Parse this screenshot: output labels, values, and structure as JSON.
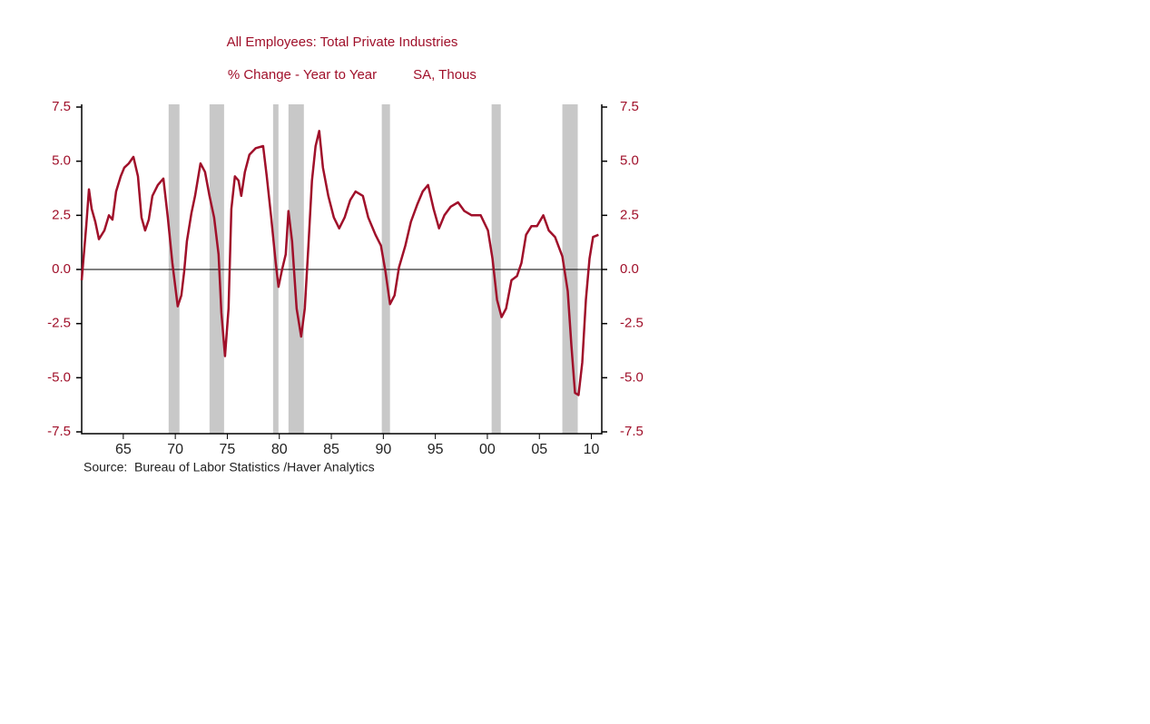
{
  "chart_data": {
    "type": "line",
    "title": "All Employees: Total Private Industries",
    "subtitle": "% Change - Year to Year",
    "units": "SA, Thous",
    "source": "Source:  Bureau of Labor Statistics /Haver Analytics",
    "color": "#a0102a",
    "shade_color": "#c8c8c8",
    "x": [
      1961.0,
      1961.44,
      1961.7,
      1961.96,
      1962.31,
      1962.66,
      1963.18,
      1963.62,
      1963.96,
      1964.31,
      1964.75,
      1965.09,
      1965.53,
      1965.97,
      1966.41,
      1966.75,
      1967.1,
      1967.45,
      1967.8,
      1968.32,
      1968.85,
      1969.28,
      1969.72,
      1970.23,
      1970.58,
      1970.85,
      1971.11,
      1971.55,
      1971.9,
      1972.42,
      1972.86,
      1973.29,
      1973.73,
      1974.16,
      1974.43,
      1974.78,
      1975.12,
      1975.39,
      1975.73,
      1976.08,
      1976.34,
      1976.69,
      1977.13,
      1977.74,
      1978.44,
      1978.79,
      1979.22,
      1979.66,
      1979.92,
      1980.27,
      1980.62,
      1980.88,
      1981.23,
      1981.66,
      1982.1,
      1982.45,
      1982.8,
      1983.14,
      1983.49,
      1983.84,
      1984.19,
      1984.71,
      1985.24,
      1985.76,
      1986.28,
      1986.81,
      1987.33,
      1988.03,
      1988.55,
      1989.25,
      1989.77,
      1990.21,
      1990.64,
      1991.08,
      1991.51,
      1992.12,
      1992.65,
      1993.26,
      1993.78,
      1994.3,
      1994.83,
      1995.35,
      1995.87,
      1996.48,
      1997.18,
      1997.79,
      1998.49,
      1999.36,
      2000.06,
      2000.49,
      2000.93,
      2001.37,
      2001.8,
      2002.32,
      2002.85,
      2003.28,
      2003.72,
      2004.24,
      2004.77,
      2005.38,
      2005.9,
      2006.51,
      2007.21,
      2007.73,
      2008.08,
      2008.43,
      2008.77,
      2009.12,
      2009.47,
      2009.82,
      2010.16,
      2010.69
    ],
    "values": [
      -0.5,
      2.0,
      3.7,
      2.8,
      2.2,
      1.4,
      1.8,
      2.5,
      2.3,
      3.6,
      4.3,
      4.7,
      4.9,
      5.2,
      4.3,
      2.4,
      1.8,
      2.3,
      3.4,
      3.9,
      4.2,
      2.4,
      0.3,
      -1.7,
      -1.2,
      -0.1,
      1.3,
      2.6,
      3.4,
      4.9,
      4.5,
      3.4,
      2.4,
      0.7,
      -2.0,
      -4.0,
      -1.8,
      2.8,
      4.3,
      4.1,
      3.4,
      4.5,
      5.3,
      5.6,
      5.7,
      4.3,
      2.4,
      0.3,
      -0.8,
      0.0,
      0.7,
      2.7,
      1.3,
      -1.8,
      -3.1,
      -1.8,
      1.1,
      4.1,
      5.7,
      6.4,
      4.7,
      3.4,
      2.4,
      1.9,
      2.4,
      3.2,
      3.6,
      3.4,
      2.4,
      1.6,
      1.1,
      -0.1,
      -1.6,
      -1.2,
      0.1,
      1.1,
      2.2,
      3.0,
      3.6,
      3.9,
      2.8,
      1.9,
      2.5,
      2.9,
      3.1,
      2.7,
      2.5,
      2.5,
      1.8,
      0.5,
      -1.4,
      -2.2,
      -1.8,
      -0.5,
      -0.3,
      0.3,
      1.6,
      2.0,
      2.0,
      2.5,
      1.8,
      1.5,
      0.6,
      -1.0,
      -3.5,
      -5.7,
      -5.8,
      -4.3,
      -1.4,
      0.5,
      1.5,
      1.6
    ],
    "shaded_ranges": [
      [
        1969.36,
        1970.4
      ],
      [
        1973.29,
        1974.69
      ],
      [
        1979.4,
        1979.92
      ],
      [
        1980.88,
        1982.36
      ],
      [
        1989.85,
        1990.64
      ],
      [
        2000.41,
        2001.29
      ],
      [
        2007.21,
        2008.69
      ]
    ],
    "xlim": [
      1961,
      2011
    ],
    "xticks": [
      {
        "value": 1965,
        "label": "65"
      },
      {
        "value": 1970,
        "label": "70"
      },
      {
        "value": 1975,
        "label": "75"
      },
      {
        "value": 1980,
        "label": "80"
      },
      {
        "value": 1985,
        "label": "85"
      },
      {
        "value": 1990,
        "label": "90"
      },
      {
        "value": 1995,
        "label": "95"
      },
      {
        "value": 2000,
        "label": "00"
      },
      {
        "value": 2005,
        "label": "05"
      },
      {
        "value": 2010,
        "label": "10"
      }
    ],
    "ylim": [
      -7.5,
      7.5
    ],
    "yticks": [
      7.5,
      {
        "value": 5,
        "label": "5.0"
      },
      2.5,
      {
        "value": 0,
        "label": "0.0"
      },
      -2.5,
      {
        "value": -5,
        "label": "-5.0"
      },
      -7.5
    ],
    "y2lim": [
      -7.5,
      7.5
    ],
    "y2ticks": [
      7.5,
      {
        "value": 5,
        "label": "5.0"
      },
      2.5,
      {
        "value": 0,
        "label": "0.0"
      },
      -2.5,
      {
        "value": -5,
        "label": "-5.0"
      },
      -7.5
    ]
  }
}
